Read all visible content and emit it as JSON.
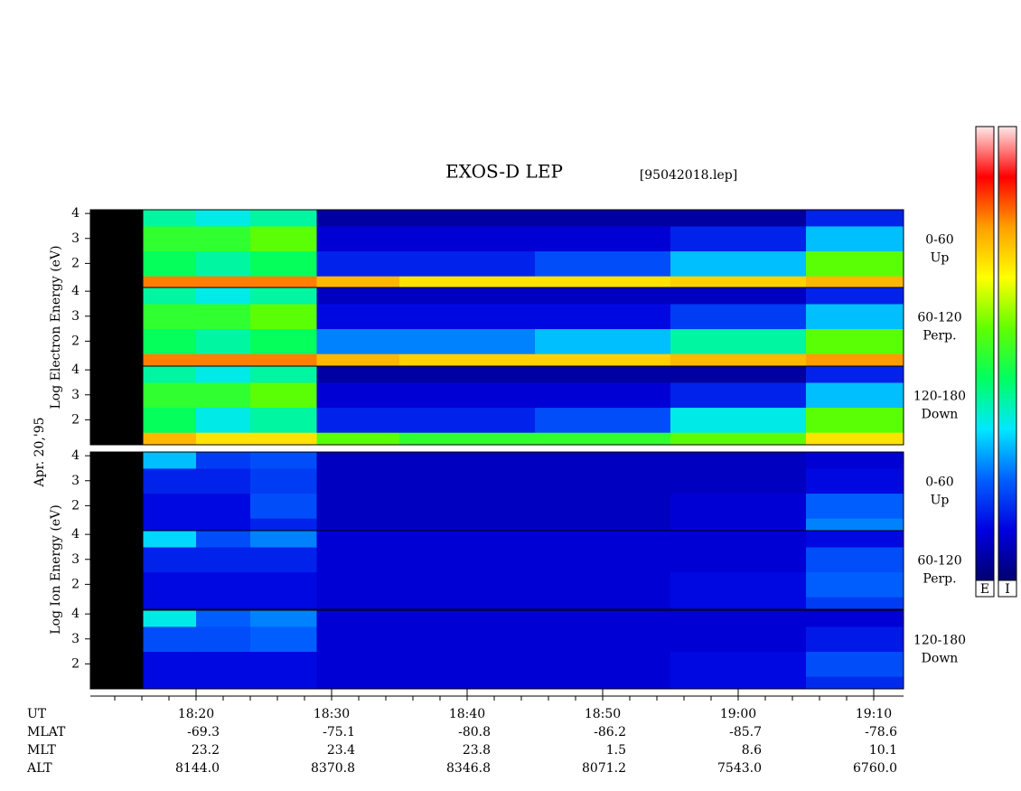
{
  "chart_data": {
    "type": "spectrogram",
    "title": "EXOS-D LEP",
    "subtitle": "[95042018.lep]",
    "date_label": "Apr. 20,'95",
    "xlim": [
      12.2,
      72.2
    ],
    "xticks": [
      {
        "value": 20,
        "label": "18:20"
      },
      {
        "value": 30,
        "label": "18:30"
      },
      {
        "value": 40,
        "label": "18:40"
      },
      {
        "value": 50,
        "label": "18:50"
      },
      {
        "value": 60,
        "label": "19:00"
      },
      {
        "value": 70,
        "label": "19:10"
      }
    ],
    "xminor": [
      14,
      16,
      18,
      22,
      24,
      26,
      28,
      32,
      34,
      36,
      38,
      42,
      44,
      46,
      48,
      52,
      54,
      56,
      58,
      62,
      64,
      66,
      68
    ],
    "ylim": [
      1,
      4.15
    ],
    "yticks": [
      2,
      3,
      4
    ],
    "time_bins": [
      16.1,
      20,
      24,
      28.9,
      35,
      45,
      55,
      65,
      72.2
    ],
    "energy_bins": [
      1,
      1.5,
      2.5,
      3.5,
      4.15
    ],
    "groups": [
      "Log Electron Energy (eV)",
      "Log Ion Energy (eV)"
    ],
    "panels": [
      {
        "group": 0,
        "label": [
          "0-60",
          "Up"
        ],
        "intensity": [
          [
            0.8,
            0.8,
            0.8,
            0.75,
            0.7,
            0.7,
            0.72,
            0.75
          ],
          [
            0.45,
            0.4,
            0.45,
            0.15,
            0.15,
            0.2,
            0.3,
            0.55
          ],
          [
            0.5,
            0.5,
            0.55,
            0.1,
            0.1,
            0.1,
            0.15,
            0.3
          ],
          [
            0.4,
            0.35,
            0.4,
            0.05,
            0.05,
            0.05,
            0.05,
            0.15
          ]
        ]
      },
      {
        "group": 0,
        "label": [
          "60-120",
          "Perp."
        ],
        "intensity": [
          [
            0.8,
            0.8,
            0.8,
            0.75,
            0.72,
            0.72,
            0.75,
            0.78
          ],
          [
            0.45,
            0.4,
            0.45,
            0.25,
            0.25,
            0.3,
            0.4,
            0.55
          ],
          [
            0.5,
            0.5,
            0.55,
            0.12,
            0.12,
            0.12,
            0.18,
            0.3
          ],
          [
            0.4,
            0.35,
            0.4,
            0.08,
            0.08,
            0.08,
            0.08,
            0.15
          ]
        ]
      },
      {
        "group": 0,
        "label": [
          "120-180",
          "Down"
        ],
        "intensity": [
          [
            0.75,
            0.7,
            0.7,
            0.55,
            0.5,
            0.5,
            0.55,
            0.7
          ],
          [
            0.45,
            0.35,
            0.4,
            0.15,
            0.15,
            0.2,
            0.35,
            0.55
          ],
          [
            0.5,
            0.5,
            0.55,
            0.1,
            0.1,
            0.1,
            0.15,
            0.3
          ],
          [
            0.4,
            0.35,
            0.4,
            0.05,
            0.05,
            0.05,
            0.05,
            0.15
          ]
        ]
      },
      {
        "group": 1,
        "label": [
          "0-60",
          "Up"
        ],
        "intensity": [
          [
            0.12,
            0.12,
            0.15,
            0.08,
            0.08,
            0.08,
            0.1,
            0.25
          ],
          [
            0.12,
            0.12,
            0.2,
            0.08,
            0.08,
            0.08,
            0.1,
            0.22
          ],
          [
            0.15,
            0.15,
            0.18,
            0.08,
            0.08,
            0.08,
            0.08,
            0.12
          ],
          [
            0.3,
            0.18,
            0.2,
            0.08,
            0.08,
            0.08,
            0.08,
            0.1
          ]
        ]
      },
      {
        "group": 1,
        "label": [
          "60-120",
          "Perp."
        ],
        "intensity": [
          [
            0.12,
            0.12,
            0.12,
            0.1,
            0.1,
            0.1,
            0.12,
            0.18
          ],
          [
            0.12,
            0.12,
            0.12,
            0.1,
            0.1,
            0.1,
            0.12,
            0.22
          ],
          [
            0.15,
            0.15,
            0.15,
            0.1,
            0.1,
            0.1,
            0.1,
            0.2
          ],
          [
            0.32,
            0.2,
            0.25,
            0.1,
            0.1,
            0.1,
            0.1,
            0.12
          ]
        ]
      },
      {
        "group": 1,
        "label": [
          "120-180",
          "Down"
        ],
        "intensity": [
          [
            0.12,
            0.12,
            0.12,
            0.1,
            0.1,
            0.1,
            0.12,
            0.16
          ],
          [
            0.12,
            0.12,
            0.12,
            0.1,
            0.1,
            0.1,
            0.12,
            0.2
          ],
          [
            0.2,
            0.2,
            0.22,
            0.1,
            0.1,
            0.1,
            0.1,
            0.14
          ],
          [
            0.35,
            0.22,
            0.25,
            0.1,
            0.1,
            0.1,
            0.1,
            0.1
          ]
        ]
      }
    ],
    "ephemeris": [
      {
        "label": "MLAT",
        "values": [
          "-69.3",
          "-75.1",
          "-80.8",
          "-86.2",
          "-85.7",
          "-78.6"
        ]
      },
      {
        "label": "MLT",
        "values": [
          "23.2",
          "23.4",
          "23.8",
          "1.5",
          "8.6",
          "10.1"
        ]
      },
      {
        "label": "ALT",
        "values": [
          "8144.0",
          "8370.8",
          "8346.8",
          "8071.2",
          "7543.0",
          "6760.0"
        ]
      }
    ],
    "x_label": "UT",
    "colorbars": [
      "E",
      "I"
    ],
    "colormap": [
      "#000070",
      "#0000e0",
      "#0060ff",
      "#00e8ff",
      "#00ff60",
      "#60ff00",
      "#ffff00",
      "#ffa000",
      "#ff0000",
      "#ffe8e8"
    ]
  }
}
